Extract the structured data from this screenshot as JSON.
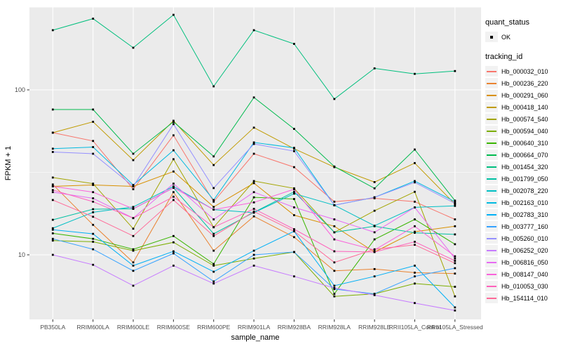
{
  "chart": {
    "y_axis": {
      "label": "FPKM + 1",
      "tick_labels": [
        "100",
        "10"
      ]
    },
    "x_axis": {
      "label": "sample_name"
    },
    "legend": {
      "quant_status": {
        "title": "quant_status",
        "items": [
          {
            "label": "OK",
            "marker": "black-square-point"
          }
        ]
      },
      "tracking_id": {
        "title": "tracking_id"
      }
    },
    "colors": {
      "panel_background": "#EBEBEB",
      "gridline": "#FFFFFF",
      "point": "#000000",
      "axis_text": "#4D4D4D",
      "legend_key_background": "#F2F2F2"
    }
  },
  "chart_data": {
    "type": "line",
    "title": "",
    "xlabel": "sample_name",
    "ylabel": "FPKM + 1",
    "x_type": "categorical",
    "yscale": "log10",
    "ylim": [
      4,
      320
    ],
    "y_major_ticks": [
      10,
      100
    ],
    "y_minor_gridlines": [
      31.6,
      316
    ],
    "grid": true,
    "legend_position": "right",
    "point_marker": {
      "shape": "square",
      "color": "#000000",
      "meaning": "quant_status OK"
    },
    "categories": [
      "PB350LA",
      "RRIM600LA",
      "RRIM600LE",
      "RRIM600SE",
      "RRIM600PE",
      "RRIM901LA",
      "RRIM928BA",
      "RRIM928LA",
      "RRIM928LE",
      "RRII105LA_Control",
      "RRII105LA_Stressed"
    ],
    "series": [
      {
        "name": "Hb_000032_010",
        "color": "#F8766D",
        "values": [
          55,
          49,
          25,
          53,
          21,
          41,
          34,
          21,
          22,
          21,
          16.4
        ]
      },
      {
        "name": "Hb_000236_220",
        "color": "#EA8331",
        "values": [
          26.7,
          15.2,
          9,
          24,
          10.6,
          17.1,
          12.8,
          8,
          8.2,
          7.8,
          7.7
        ]
      },
      {
        "name": "Hb_000291_060",
        "color": "#D89000",
        "values": [
          26,
          26.5,
          26,
          32,
          19.5,
          27.2,
          17.4,
          14.9,
          10.4,
          13.8,
          14.9
        ]
      },
      {
        "name": "Hb_000418_140",
        "color": "#C09B00",
        "values": [
          55,
          64,
          37.5,
          65,
          35,
          59,
          44,
          34,
          27.6,
          36,
          20.3
        ]
      },
      {
        "name": "Hb_000574_540",
        "color": "#A3A500",
        "values": [
          29.4,
          27,
          14.4,
          38,
          14.7,
          28,
          25.3,
          13.7,
          18.5,
          24.1,
          5.6
        ]
      },
      {
        "name": "Hb_000594_040",
        "color": "#7CAE00",
        "values": [
          12.2,
          12,
          10.6,
          11.9,
          8.6,
          9.5,
          10.4,
          5.6,
          5.8,
          6.7,
          6.4
        ]
      },
      {
        "name": "Hb_000640_310",
        "color": "#39B600",
        "values": [
          13.5,
          12.5,
          10.8,
          13,
          8.8,
          22.3,
          21.8,
          5.8,
          12.4,
          16.4,
          11.6
        ]
      },
      {
        "name": "Hb_000664_070",
        "color": "#00BB4E",
        "values": [
          76,
          76,
          41,
          64,
          39.5,
          90,
          58,
          34.3,
          25.3,
          43.5,
          21.3
        ]
      },
      {
        "name": "Hb_001454_320",
        "color": "#00BF7D",
        "values": [
          230,
          270,
          180,
          285,
          105,
          230,
          190,
          88,
          135,
          125,
          130
        ]
      },
      {
        "name": "Hb_001799_050",
        "color": "#00C1A3",
        "values": [
          16.3,
          18.9,
          19,
          25.5,
          13.4,
          18.1,
          24.1,
          13.7,
          14.9,
          13.6,
          13.3
        ]
      },
      {
        "name": "Hb_002078_220",
        "color": "#00BFC4",
        "values": [
          14.5,
          18.1,
          19.5,
          26,
          18.8,
          18,
          23.5,
          20,
          15,
          19.4,
          19.8
        ]
      },
      {
        "name": "Hb_002163_010",
        "color": "#00BAE0",
        "values": [
          44,
          45,
          26.5,
          43,
          21.5,
          48,
          44.5,
          20,
          22.3,
          28,
          21
        ]
      },
      {
        "name": "Hb_002783_310",
        "color": "#00B0F6",
        "values": [
          14.2,
          13.4,
          8.6,
          10.5,
          7.9,
          10.6,
          13.9,
          6.5,
          7.4,
          8.6,
          4.8
        ]
      },
      {
        "name": "Hb_003777_160",
        "color": "#35A2FF",
        "values": [
          12.5,
          10.8,
          8,
          10.2,
          6.9,
          10,
          10.4,
          6.2,
          5.8,
          7.4,
          8.3
        ]
      },
      {
        "name": "Hb_005260_010",
        "color": "#9590FF",
        "values": [
          42,
          41,
          26,
          62,
          25.4,
          47,
          42.5,
          20,
          22.3,
          27.5,
          20.5
        ]
      },
      {
        "name": "Hb_006252_020",
        "color": "#C77CFF",
        "values": [
          10,
          8.7,
          6.5,
          8.6,
          6.7,
          8.6,
          7.4,
          6.3,
          5.7,
          5.1,
          4.6
        ]
      },
      {
        "name": "Hb_006816_050",
        "color": "#E76BF3",
        "values": [
          24,
          22,
          16.7,
          27,
          16.4,
          24,
          19.4,
          16.4,
          13.7,
          19.4,
          9.5
        ]
      },
      {
        "name": "Hb_008147_040",
        "color": "#FA62DB",
        "values": [
          26,
          24,
          19,
          25.5,
          18.8,
          20.8,
          25,
          12.4,
          10.7,
          14.9,
          9.8
        ]
      },
      {
        "name": "Hb_010053_030",
        "color": "#FF62BC",
        "values": [
          24.7,
          21,
          16.7,
          22.5,
          14.7,
          19,
          14.3,
          10.5,
          10.4,
          12,
          9.2
        ]
      },
      {
        "name": "Hb_154114_010",
        "color": "#FF6A98",
        "values": [
          21.5,
          17,
          13,
          21.5,
          13,
          18.3,
          13.9,
          9,
          10.8,
          11.5,
          8.9
        ]
      }
    ]
  }
}
